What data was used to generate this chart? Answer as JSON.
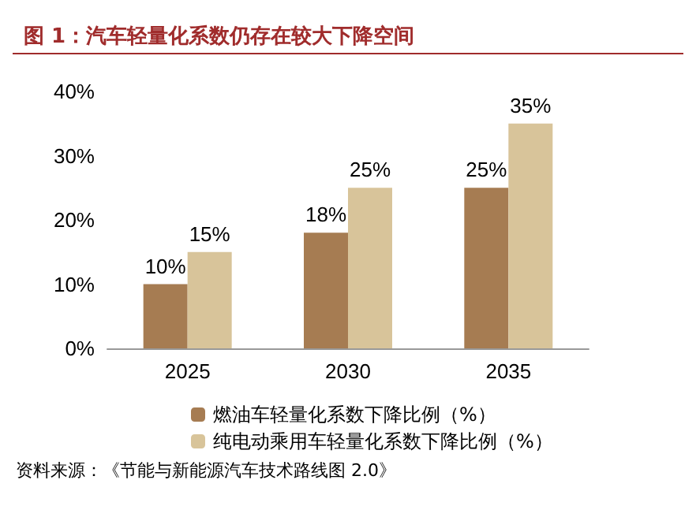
{
  "chart_data": {
    "type": "bar",
    "title": "图 1：汽车轻量化系数仍存在较大下降空间",
    "categories": [
      "2025",
      "2030",
      "2035"
    ],
    "series": [
      {
        "name": "燃油车轻量化系数下降比例（%）",
        "color": "#a67c52",
        "values": [
          10,
          18,
          25
        ],
        "value_labels": [
          "10%",
          "18%",
          "25%"
        ]
      },
      {
        "name": "纯电动乘用车轻量化系数下降比例（%）",
        "color": "#d8c49a",
        "values": [
          15,
          25,
          35
        ],
        "value_labels": [
          "15%",
          "25%",
          "35%"
        ]
      }
    ],
    "ylim": [
      0,
      40
    ],
    "yticks": [
      {
        "value": 0,
        "label": "0%"
      },
      {
        "value": 10,
        "label": "10%"
      },
      {
        "value": 20,
        "label": "20%"
      },
      {
        "value": 30,
        "label": "30%"
      },
      {
        "value": 40,
        "label": "40%"
      }
    ],
    "grid": false,
    "legend": "bottom",
    "annotations": [
      "资料来源：《节能与新能源汽车技术路线图 2.0》"
    ]
  }
}
